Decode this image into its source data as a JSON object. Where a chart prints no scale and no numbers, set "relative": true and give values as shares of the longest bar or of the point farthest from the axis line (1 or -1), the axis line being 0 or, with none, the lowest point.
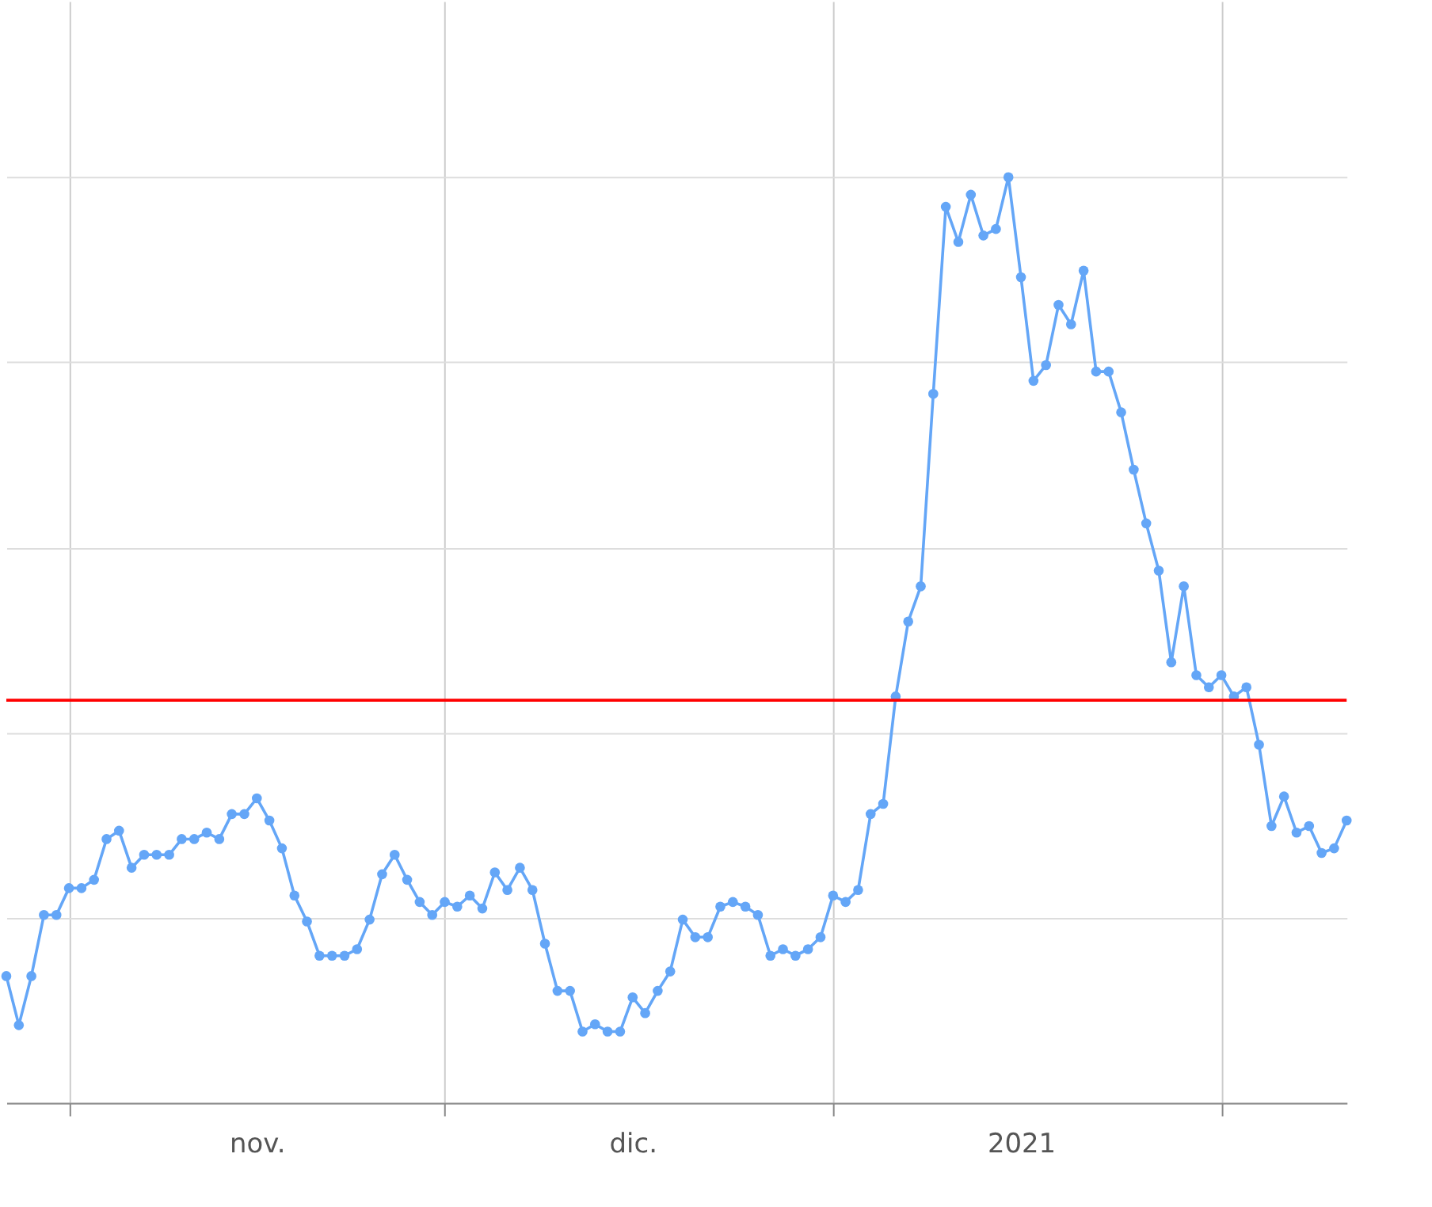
{
  "chart_data": {
    "type": "line",
    "relative": true,
    "marker": "circle",
    "line_style": "solid",
    "grid": true,
    "legend": false,
    "xlim": [
      "2020-10-27",
      "2021-02-11"
    ],
    "xticks": [
      {
        "value": "2020-11-01",
        "label": null
      },
      {
        "value": "2020-11-16",
        "label": "nov."
      },
      {
        "value": "2020-12-01",
        "label": null
      },
      {
        "value": "2020-12-16",
        "label": "dic."
      },
      {
        "value": "2021-01-01",
        "label": null
      },
      {
        "value": "2021-01-16",
        "label": "2021"
      },
      {
        "value": "2021-02-01",
        "label": null
      }
    ],
    "x": [
      "2020-10-27",
      "2020-10-28",
      "2020-10-29",
      "2020-10-30",
      "2020-10-31",
      "2020-11-01",
      "2020-11-02",
      "2020-11-03",
      "2020-11-04",
      "2020-11-05",
      "2020-11-06",
      "2020-11-07",
      "2020-11-08",
      "2020-11-09",
      "2020-11-10",
      "2020-11-11",
      "2020-11-12",
      "2020-11-13",
      "2020-11-14",
      "2020-11-15",
      "2020-11-16",
      "2020-11-17",
      "2020-11-18",
      "2020-11-19",
      "2020-11-20",
      "2020-11-21",
      "2020-11-22",
      "2020-11-23",
      "2020-11-24",
      "2020-11-25",
      "2020-11-26",
      "2020-11-27",
      "2020-11-28",
      "2020-11-29",
      "2020-11-30",
      "2020-12-01",
      "2020-12-02",
      "2020-12-03",
      "2020-12-04",
      "2020-12-05",
      "2020-12-06",
      "2020-12-07",
      "2020-12-08",
      "2020-12-09",
      "2020-12-10",
      "2020-12-11",
      "2020-12-12",
      "2020-12-13",
      "2020-12-14",
      "2020-12-15",
      "2020-12-16",
      "2020-12-17",
      "2020-12-18",
      "2020-12-19",
      "2020-12-20",
      "2020-12-21",
      "2020-12-22",
      "2020-12-23",
      "2020-12-24",
      "2020-12-25",
      "2020-12-26",
      "2020-12-27",
      "2020-12-28",
      "2020-12-29",
      "2020-12-30",
      "2020-12-31",
      "2021-01-01",
      "2021-01-02",
      "2021-01-03",
      "2021-01-04",
      "2021-01-05",
      "2021-01-06",
      "2021-01-07",
      "2021-01-08",
      "2021-01-09",
      "2021-01-10",
      "2021-01-11",
      "2021-01-12",
      "2021-01-13",
      "2021-01-14",
      "2021-01-15",
      "2021-01-16",
      "2021-01-17",
      "2021-01-18",
      "2021-01-19",
      "2021-01-20",
      "2021-01-21",
      "2021-01-22",
      "2021-01-23",
      "2021-01-24",
      "2021-01-25",
      "2021-01-26",
      "2021-01-27",
      "2021-01-28",
      "2021-01-29",
      "2021-01-30",
      "2021-01-31",
      "2021-02-01",
      "2021-02-02",
      "2021-02-03",
      "2021-02-04",
      "2021-02-05",
      "2021-02-06",
      "2021-02-07",
      "2021-02-08",
      "2021-02-09",
      "2021-02-10",
      "2021-02-11"
    ],
    "series": [
      {
        "color": "#64a6f7",
        "values": [
          0.137,
          0.084,
          0.137,
          0.203,
          0.203,
          0.232,
          0.232,
          0.241,
          0.285,
          0.294,
          0.254,
          0.268,
          0.268,
          0.268,
          0.285,
          0.285,
          0.292,
          0.285,
          0.312,
          0.312,
          0.329,
          0.305,
          0.275,
          0.224,
          0.196,
          0.159,
          0.159,
          0.159,
          0.166,
          0.198,
          0.247,
          0.268,
          0.241,
          0.217,
          0.203,
          0.217,
          0.212,
          0.224,
          0.21,
          0.249,
          0.23,
          0.254,
          0.23,
          0.172,
          0.121,
          0.121,
          0.077,
          0.085,
          0.077,
          0.077,
          0.114,
          0.097,
          0.121,
          0.142,
          0.198,
          0.179,
          0.179,
          0.212,
          0.217,
          0.212,
          0.203,
          0.159,
          0.166,
          0.159,
          0.166,
          0.179,
          0.224,
          0.217,
          0.23,
          0.312,
          0.323,
          0.439,
          0.52,
          0.558,
          0.766,
          0.968,
          0.93,
          0.981,
          0.937,
          0.944,
          1,
          0.892,
          0.78,
          0.797,
          0.862,
          0.841,
          0.899,
          0.79,
          0.79,
          0.746,
          0.684,
          0.626,
          0.575,
          0.476,
          0.558,
          0.462,
          0.449,
          0.462,
          0.439,
          0.449,
          0.387,
          0.299,
          0.331,
          0.292,
          0.299,
          0.27,
          0.275,
          0.305
        ]
      }
    ],
    "ref_lines": [
      {
        "axis": "y",
        "value": 0.435,
        "color": "#ff0000"
      }
    ]
  }
}
